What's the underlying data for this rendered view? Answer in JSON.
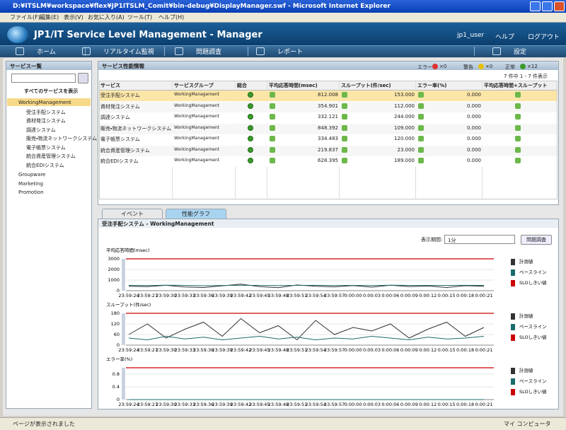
{
  "window": {
    "title": "D:¥ITSLM¥workspace¥flex¥JP1ITSLM_Comit¥bin-debug¥DisplayManager.swf - Microsoft Internet Explorer"
  },
  "menu": [
    "ファイル(F)",
    "編集(E)",
    "表示(V)",
    "お気に入り(A)",
    "ツール(T)",
    "ヘルプ(H)"
  ],
  "header": {
    "title": "JP1/IT Service Level Management - Manager",
    "user": "jp1_user",
    "help": "ヘルプ",
    "logout": "ログアウト"
  },
  "nav": [
    "ホーム",
    "リアルタイム監視",
    "問題調査",
    "レポート",
    "設定"
  ],
  "sidebar": {
    "title": "サービス一覧",
    "show_all": "すべてのサービスを表示",
    "tree": [
      {
        "label": "WorkingManagement",
        "children": [
          "受注手配システム",
          "資材発注システム",
          "調達システム",
          "販売・物流ネットワークシステム",
          "電子帳票システム",
          "統合資産管理システム",
          "統合EDIシステム"
        ]
      },
      {
        "label": "Groupware",
        "children": []
      },
      {
        "label": "Marketing",
        "children": []
      },
      {
        "label": "Promotion",
        "children": []
      }
    ]
  },
  "service_panel": {
    "title": "サービス性能情報",
    "status": [
      {
        "label": "エラー",
        "count": "×0"
      },
      {
        "label": "警告",
        "count": "×0"
      },
      {
        "label": "正常",
        "count": "×12"
      }
    ],
    "paging": "7 件中 1 - 7 件表示",
    "columns": [
      "サービス",
      "サービスグループ",
      "総合",
      "平均応答時間(msec)",
      "スループット(件/sec)",
      "エラー率(%)",
      "平均応答時間+スループット"
    ],
    "rows": [
      [
        "受注手配システム",
        "WorkingManagement",
        "812.008",
        "153.000",
        "0.000"
      ],
      [
        "資材発注システム",
        "WorkingManagement",
        "354.901",
        "112.000",
        "0.000"
      ],
      [
        "調達システム",
        "WorkingManagement",
        "332.121",
        "244.000",
        "0.000"
      ],
      [
        "販売・物流ネットワークシステム",
        "WorkingManagement",
        "848.392",
        "109.000",
        "0.000"
      ],
      [
        "電子帳票システム",
        "WorkingManagement",
        "334.483",
        "120.000",
        "0.000"
      ],
      [
        "統合資産管理システム",
        "WorkingManagement",
        "219.837",
        "23.000",
        "0.000"
      ],
      [
        "統合EDIシステム",
        "WorkingManagement",
        "628.395",
        "189.000",
        "0.000"
      ]
    ]
  },
  "tabs": [
    "イベント",
    "性能グラフ"
  ],
  "graph_panel": {
    "title": "受注手配システム - WorkingManagement",
    "period_label": "表示期間:",
    "period": "1分",
    "button": "問題調査",
    "x": [
      "23:59:24",
      "23:59:27",
      "23:59:30",
      "23:59:33",
      "23:59:36",
      "23:59:39",
      "23:59:42",
      "23:59:45",
      "23:59:48",
      "23:59:51",
      "23:59:54",
      "23:59:57",
      "0:00:00",
      "0:00:03",
      "0:00:06",
      "0:00:09",
      "0:00:12",
      "0:00:15",
      "0:00:18",
      "0:00:21"
    ],
    "charts": [
      {
        "type": "line",
        "title": "平均応答時間(msec)",
        "ylim": [
          0,
          3000
        ],
        "yticks": [
          0,
          1000,
          2000,
          3000
        ],
        "slo": {
          "name": "SLOしきい値",
          "value": 3000,
          "color": "#cc0000"
        },
        "series": [
          {
            "name": "計測値",
            "color": "#333333",
            "values": [
              420,
              380,
              510,
              350,
              300,
              460,
              620,
              380,
              290,
              540,
              410,
              360,
              480,
              330,
              520,
              390,
              440,
              300,
              470,
              410
            ]
          },
          {
            "name": "ベースライン",
            "color": "#1a6b6b",
            "values": [
              500,
              480,
              520,
              500,
              470,
              490,
              510,
              500,
              480,
              500,
              510,
              490,
              500,
              480,
              520,
              500,
              490,
              500,
              510,
              500
            ]
          }
        ]
      },
      {
        "type": "line",
        "title": "スループット(件/sec)",
        "ylim": [
          0,
          180
        ],
        "yticks": [
          0,
          60,
          120,
          180
        ],
        "slo": {
          "name": "SLOしきい値",
          "value": 180,
          "color": "#cc0000"
        },
        "series": [
          {
            "name": "計測値",
            "color": "#333333",
            "values": [
              60,
              120,
              40,
              90,
              130,
              50,
              150,
              70,
              110,
              30,
              140,
              60,
              100,
              80,
              120,
              40,
              90,
              130,
              50,
              100
            ]
          },
          {
            "name": "ベースライン",
            "color": "#1a6b6b",
            "values": [
              40,
              30,
              50,
              35,
              45,
              30,
              40,
              50,
              35,
              45,
              30,
              40,
              35,
              50,
              40,
              30,
              45,
              35,
              40,
              50
            ]
          }
        ]
      },
      {
        "type": "line",
        "title": "エラー率(%)",
        "ylim": [
          0,
          1
        ],
        "yticks": [
          0,
          0.4,
          0.8
        ],
        "slo": {
          "name": "SLOしきい値",
          "value": 1,
          "color": "#cc0000"
        },
        "series": [
          {
            "name": "計測値",
            "color": "#333333",
            "values": [
              0,
              0,
              0,
              0,
              0,
              0,
              0,
              0,
              0,
              0,
              0,
              0,
              0,
              0,
              0,
              0,
              0,
              0,
              0,
              0
            ]
          },
          {
            "name": "ベースライン",
            "color": "#1a6b6b",
            "values": [
              0,
              0,
              0,
              0,
              0,
              0,
              0,
              0,
              0,
              0,
              0,
              0,
              0,
              0,
              0,
              0,
              0,
              0,
              0,
              0
            ]
          }
        ]
      }
    ]
  },
  "statusbar": {
    "left": "ページが表示されました",
    "right": "マイ コンピュータ"
  }
}
